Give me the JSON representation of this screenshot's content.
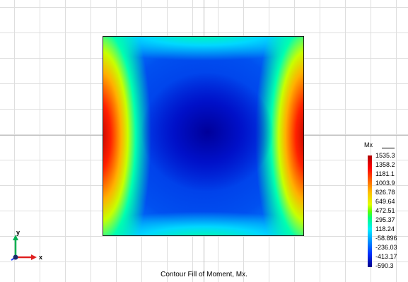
{
  "caption": "Contour Fill of Moment, Mx.",
  "legend": {
    "title": "Mx",
    "labels": [
      "1535.3",
      "1358.2",
      "1181.1",
      "1003.9",
      "826.78",
      "649.64",
      "472.51",
      "295.37",
      "118.24",
      "-58.896",
      "-236.03",
      "-413.17",
      "-590.3"
    ]
  },
  "triad": {
    "y_label": "y",
    "x_label": "x"
  },
  "colors": {
    "max": "#b00000",
    "min": "#00008a",
    "grid": "#dedede",
    "y_axis": "#00b050",
    "x_axis": "#e02020"
  }
}
